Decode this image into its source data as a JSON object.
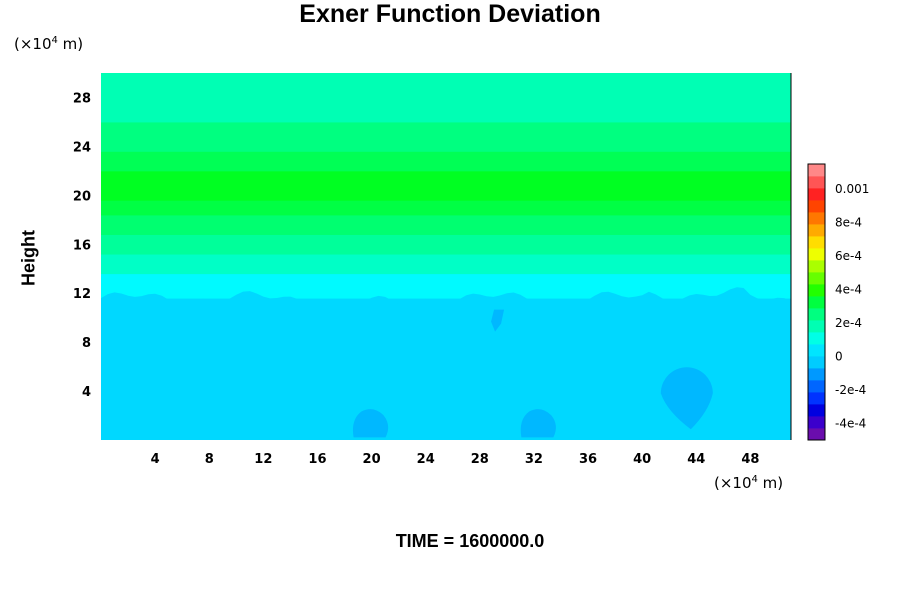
{
  "chart_data": {
    "type": "heatmap",
    "title": "Exner Function Deviation",
    "ylabel": "Height",
    "xlabel": "",
    "x_unit": "(×10",
    "x_unit_exp": "4",
    "x_unit_tail": " m)",
    "y_unit": "(×10",
    "y_unit_exp": "4",
    "y_unit_tail": " m)",
    "xlim": [
      0,
      51
    ],
    "ylim": [
      0,
      30
    ],
    "xticks": [
      4,
      8,
      12,
      16,
      20,
      24,
      28,
      32,
      36,
      40,
      44,
      48
    ],
    "xtick_labels": [
      "4",
      "8",
      "12",
      "16",
      "20",
      "24",
      "28",
      "32",
      "36",
      "40",
      "44",
      "48"
    ],
    "yticks": [
      4,
      8,
      12,
      16,
      20,
      24,
      28
    ],
    "ytick_labels": [
      "4",
      "8",
      "12",
      "16",
      "20",
      "24",
      "28"
    ],
    "grid": false,
    "time_label": "TIME = 1600000.0",
    "colorbar": {
      "min": -0.0005,
      "max": 0.00115,
      "ticks": [
        0.001,
        0.0008,
        0.0006,
        0.0004,
        0.0002,
        0,
        -0.0002,
        -0.0004
      ],
      "tick_labels": [
        "0.001",
        "8e-4",
        "6e-4",
        "4e-4",
        "2e-4",
        "0",
        "-2e-4",
        "-4e-4"
      ],
      "colors": [
        "#6a0dad",
        "#3b00cc",
        "#0000e0",
        "#0033ff",
        "#0066ff",
        "#0099ff",
        "#00ccff",
        "#00e5ff",
        "#00ffe6",
        "#00ffb3",
        "#00ff80",
        "#00ff40",
        "#22ff00",
        "#66ff00",
        "#aaff00",
        "#eeff00",
        "#ffdd00",
        "#ffaa00",
        "#ff7700",
        "#ff4400",
        "#ff2222",
        "#ff5555",
        "#ff8888"
      ]
    },
    "bands": [
      {
        "y0": 0,
        "y1": 11.6,
        "value": -8e-05,
        "color": "#00d8ff"
      },
      {
        "y0": 11.6,
        "y1": 13.6,
        "value": 2e-05,
        "color": "#00faff"
      },
      {
        "y0": 13.6,
        "y1": 15.2,
        "value": 0.0001,
        "color": "#00ffc6"
      },
      {
        "y0": 15.2,
        "y1": 16.8,
        "value": 0.00016,
        "color": "#00ff9a"
      },
      {
        "y0": 16.8,
        "y1": 18.4,
        "value": 0.00022,
        "color": "#00ff70"
      },
      {
        "y0": 18.4,
        "y1": 19.6,
        "value": 0.00028,
        "color": "#00ff44"
      },
      {
        "y0": 19.6,
        "y1": 22.0,
        "value": 0.00032,
        "color": "#00ff22"
      },
      {
        "y0": 22.0,
        "y1": 23.6,
        "value": 0.00026,
        "color": "#00ff55"
      },
      {
        "y0": 23.6,
        "y1": 26.0,
        "value": 0.00018,
        "color": "#00ff80"
      },
      {
        "y0": 26.0,
        "y1": 30.0,
        "value": 0.00012,
        "color": "#00ffb4"
      }
    ],
    "anomalies": [
      {
        "x": 20.0,
        "y": 1.2,
        "value": -0.00016,
        "color": "#00b8ff"
      },
      {
        "x": 32.4,
        "y": 1.2,
        "value": -0.00016,
        "color": "#00b8ff"
      },
      {
        "x": 43.3,
        "y": 3.0,
        "value": -0.00016,
        "color": "#00b8ff"
      },
      {
        "x": 29.2,
        "y": 10.0,
        "value": -0.00016,
        "color": "#00b8ff"
      }
    ]
  }
}
